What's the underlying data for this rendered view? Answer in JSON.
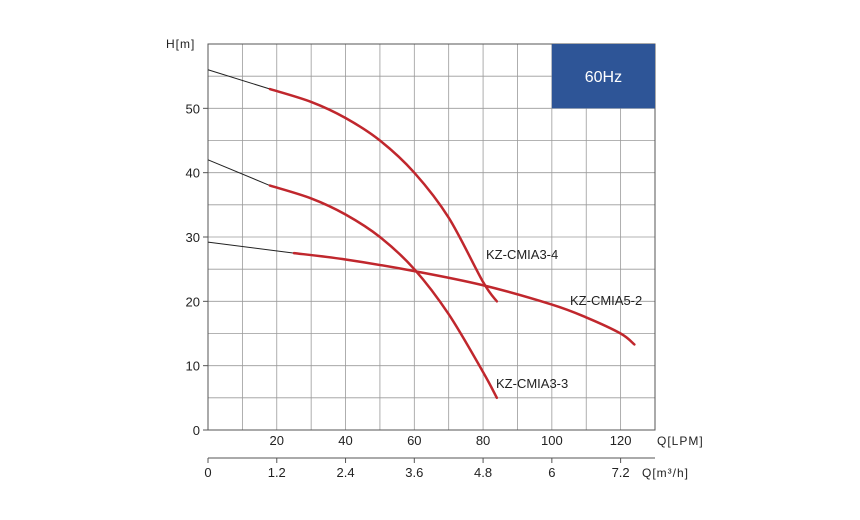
{
  "chart_data": {
    "type": "line",
    "ylabel": "H[m]",
    "xlabel": "Q[LPM]",
    "x2label": "Q[m³/h]",
    "xlim": [
      0,
      130
    ],
    "ylim": [
      0,
      60
    ],
    "x_ticks": [
      "20",
      "40",
      "60",
      "80",
      "100",
      "120"
    ],
    "x_tick_values": [
      20,
      40,
      60,
      80,
      100,
      120
    ],
    "y_ticks": [
      "0",
      "10",
      "20",
      "30",
      "40",
      "50"
    ],
    "y_tick_values": [
      0,
      10,
      20,
      30,
      40,
      50
    ],
    "x2_ticks": [
      "0",
      "1.2",
      "2.4",
      "3.6",
      "4.8",
      "6",
      "7.2"
    ],
    "x2_tick_values": [
      0,
      1.2,
      2.4,
      3.6,
      4.8,
      6,
      7.2
    ],
    "grid": true,
    "badge": {
      "text": "60Hz",
      "color": "#2e5597"
    },
    "series": [
      {
        "name": "KZ-CMIA3-4",
        "color": "#c0272d",
        "shutoff": [
          [
            0,
            56
          ],
          [
            18,
            53
          ]
        ],
        "x": [
          18,
          30,
          40,
          50,
          60,
          70,
          80,
          84
        ],
        "y": [
          53,
          51,
          48.5,
          45,
          40,
          33,
          23,
          20
        ]
      },
      {
        "name": "KZ-CMIA3-3",
        "color": "#c0272d",
        "shutoff": [
          [
            0,
            42
          ],
          [
            18,
            38
          ]
        ],
        "x": [
          18,
          30,
          40,
          50,
          60,
          70,
          80,
          84
        ],
        "y": [
          38,
          36,
          33.5,
          30,
          25,
          18,
          9,
          5
        ]
      },
      {
        "name": "KZ-CMIA5-2",
        "color": "#c0272d",
        "shutoff": [
          [
            0,
            29.2
          ],
          [
            25,
            27.5
          ]
        ],
        "x": [
          25,
          40,
          60,
          80,
          100,
          110,
          120,
          124
        ],
        "y": [
          27.5,
          26.5,
          24.7,
          22.5,
          19.5,
          17.5,
          15,
          13.3
        ]
      }
    ]
  }
}
